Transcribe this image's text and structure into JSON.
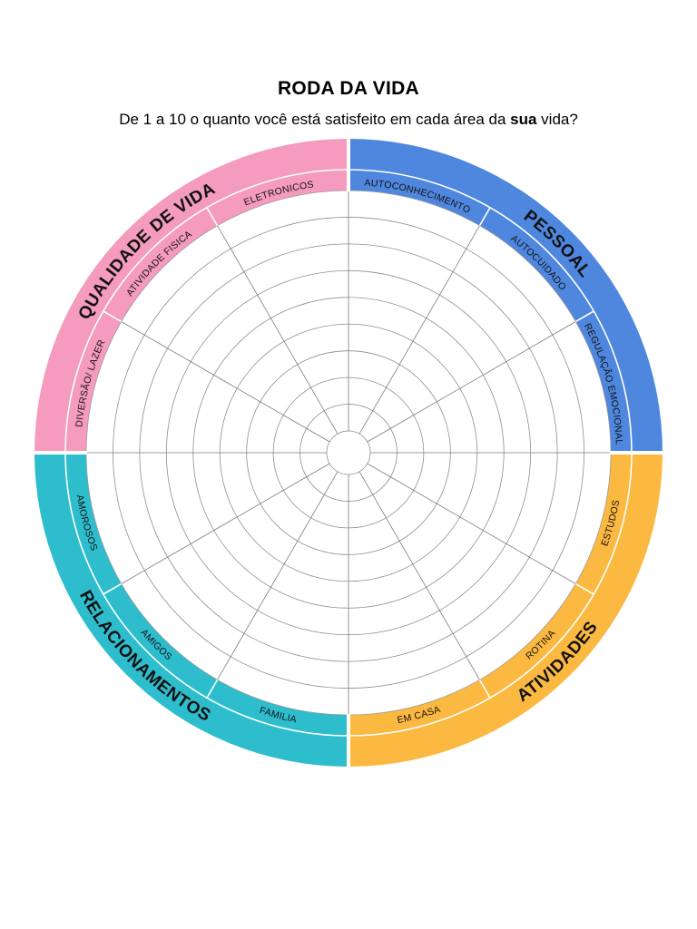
{
  "header": {
    "title": "RODA DA VIDA",
    "subtitle_before": "De 1 a 10 o quanto você está satisfeito em cada área da ",
    "subtitle_bold": "sua",
    "subtitle_after": " vida?"
  },
  "wheel": {
    "scale_min": 1,
    "scale_max": 10,
    "sections": [
      {
        "name": "PESSOAL",
        "color": "#4f87df",
        "areas": [
          "AUTOCONHECIMENTO",
          "AUTOCUIDADO",
          "REGULAÇÃO EMOCIONAL"
        ]
      },
      {
        "name": "ATIVIDADES",
        "color": "#fcb941",
        "areas": [
          "ESTUDOS",
          "ROTINA",
          "EM CASA"
        ]
      },
      {
        "name": "RELACIONAMENTOS",
        "color": "#2ebdcc",
        "areas": [
          "FAMILIA",
          "AMIGOS",
          "AMOROSOS"
        ]
      },
      {
        "name": "QUALIDADE DE VIDA",
        "color": "#f59bbd",
        "areas": [
          "DIVERSÃO/ LAZER",
          "ATIVIDADE FISICA",
          "ELETRONICOS"
        ]
      }
    ]
  }
}
